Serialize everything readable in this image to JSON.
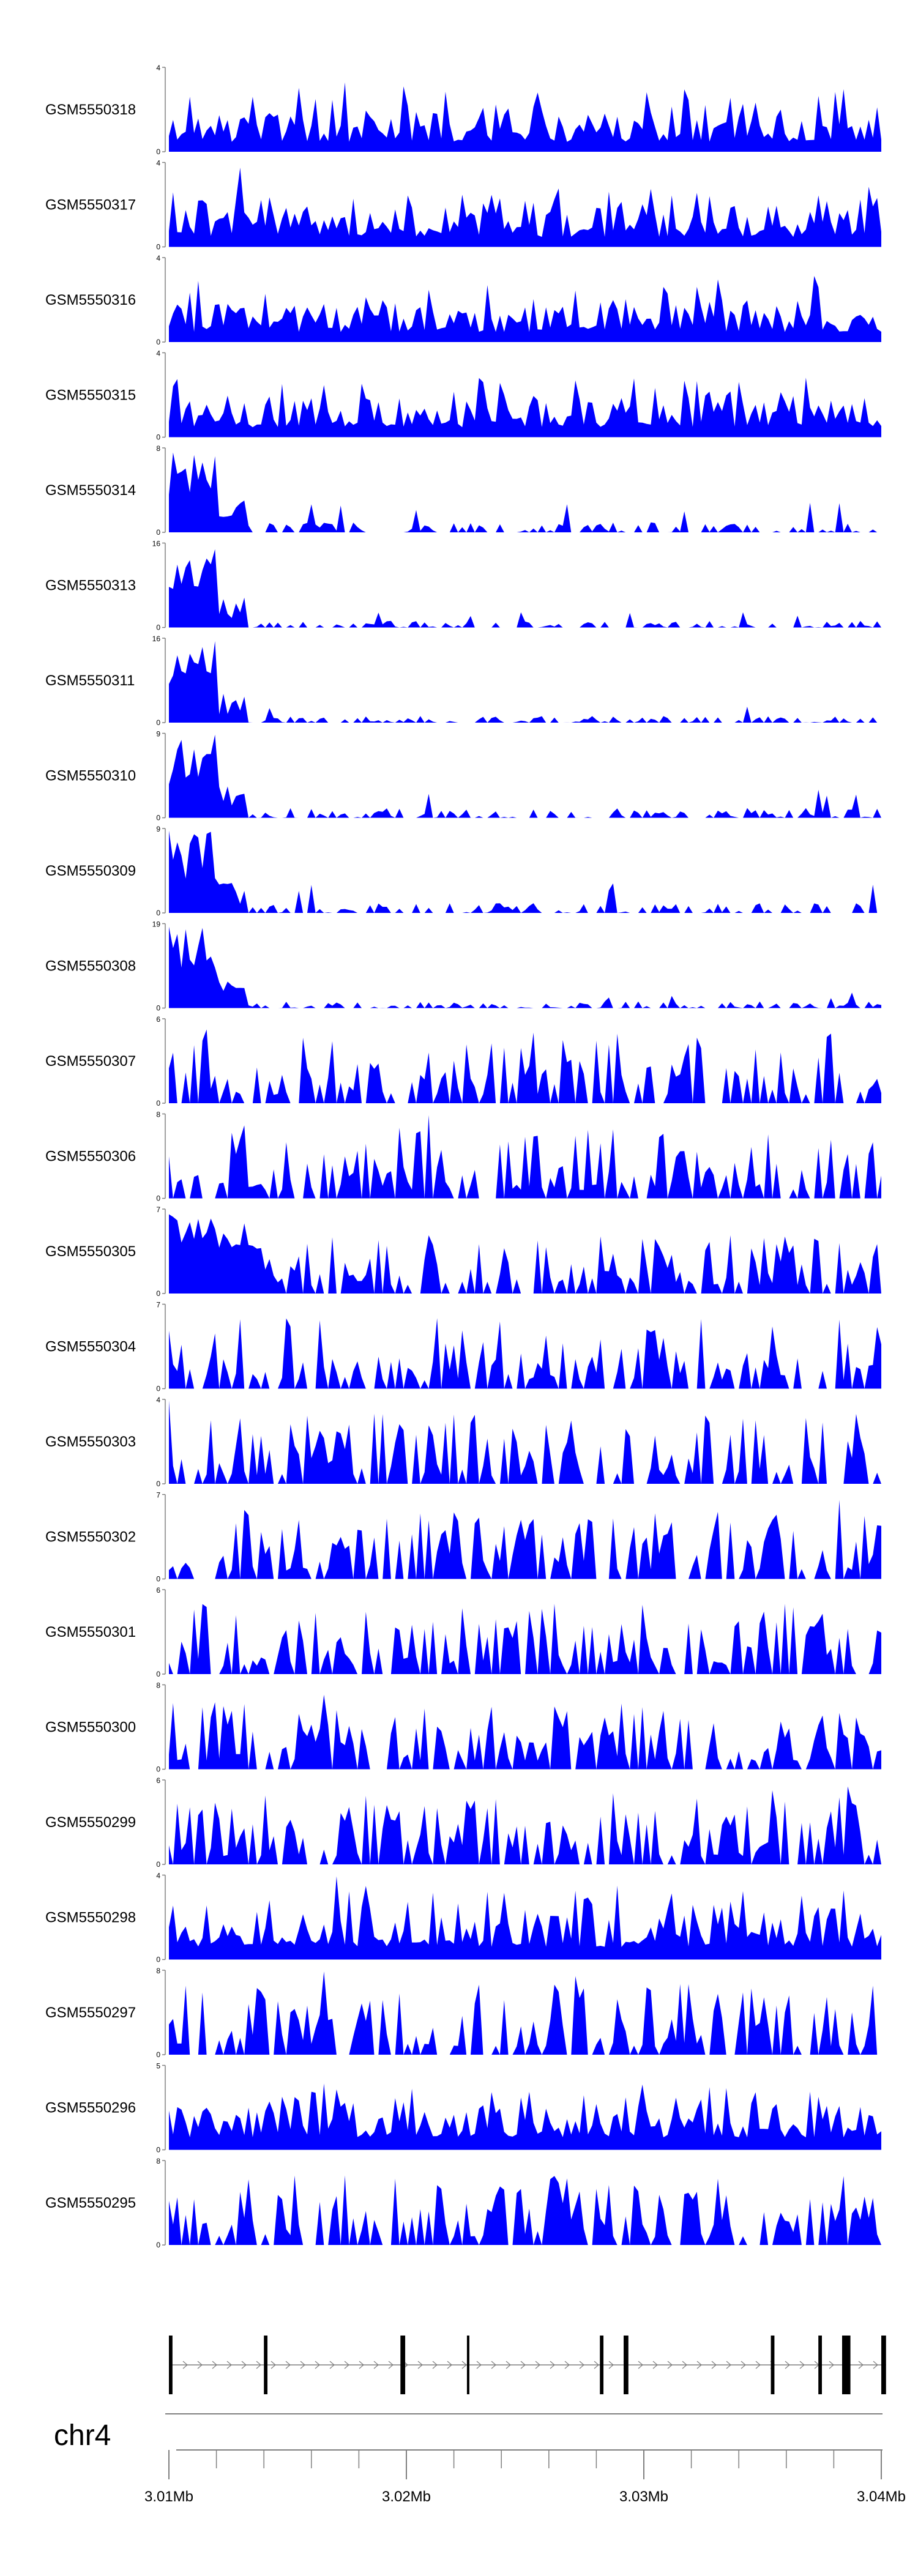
{
  "chart_data": {
    "type": "area",
    "title": "",
    "chromosome": "chr4",
    "color": "#0000ff",
    "xlim": [
      3.01,
      3.04
    ],
    "x_unit": "Mb",
    "x_ticks": [
      "3.01Mb",
      "3.02Mb",
      "3.03Mb",
      "3.04Mb"
    ],
    "x_tick_values": [
      3.01,
      3.02,
      3.03,
      3.04
    ],
    "minor_tick_step": 0.002,
    "grid": false,
    "series": [
      {
        "name": "GSM5550318",
        "ymax": 4,
        "profile": "uniform",
        "seed": 318
      },
      {
        "name": "GSM5550317",
        "ymax": 4,
        "profile": "uniform",
        "seed": 317
      },
      {
        "name": "GSM5550316",
        "ymax": 4,
        "profile": "uniform",
        "seed": 316
      },
      {
        "name": "GSM5550315",
        "ymax": 4,
        "profile": "uniform",
        "seed": 315
      },
      {
        "name": "GSM5550314",
        "ymax": 8,
        "profile": "peak-start",
        "seed": 314
      },
      {
        "name": "GSM5550313",
        "ymax": 16,
        "profile": "strong-peak-start",
        "seed": 313
      },
      {
        "name": "GSM5550311",
        "ymax": 16,
        "profile": "strong-peak-start",
        "seed": 311
      },
      {
        "name": "GSM5550310",
        "ymax": 9,
        "profile": "peak-start",
        "seed": 310
      },
      {
        "name": "GSM5550309",
        "ymax": 9,
        "profile": "peak-start",
        "seed": 309
      },
      {
        "name": "GSM5550308",
        "ymax": 19,
        "profile": "strong-peak-start",
        "seed": 308
      },
      {
        "name": "GSM5550307",
        "ymax": 6,
        "profile": "spiky",
        "seed": 307
      },
      {
        "name": "GSM5550306",
        "ymax": 8,
        "profile": "spiky",
        "seed": 306
      },
      {
        "name": "GSM5550305",
        "ymax": 7,
        "profile": "spiky-start",
        "seed": 305
      },
      {
        "name": "GSM5550304",
        "ymax": 7,
        "profile": "spiky",
        "seed": 304
      },
      {
        "name": "GSM5550303",
        "ymax": 4,
        "profile": "spiky",
        "seed": 303
      },
      {
        "name": "GSM5550302",
        "ymax": 7,
        "profile": "spiky",
        "seed": 302
      },
      {
        "name": "GSM5550301",
        "ymax": 6,
        "profile": "spiky",
        "seed": 301
      },
      {
        "name": "GSM5550300",
        "ymax": 8,
        "profile": "spiky",
        "seed": 300
      },
      {
        "name": "GSM5550299",
        "ymax": 6,
        "profile": "spiky",
        "seed": 299
      },
      {
        "name": "GSM5550298",
        "ymax": 4,
        "profile": "dense",
        "seed": 298
      },
      {
        "name": "GSM5550297",
        "ymax": 8,
        "profile": "spiky",
        "seed": 297
      },
      {
        "name": "GSM5550296",
        "ymax": 5,
        "profile": "dense",
        "seed": 296
      },
      {
        "name": "GSM5550295",
        "ymax": 8,
        "profile": "spiky",
        "seed": 295
      }
    ],
    "gene": {
      "start": 3.01,
      "end": 3.0402,
      "strand": "+",
      "exons": [
        {
          "start": 3.01,
          "end": 3.01015
        },
        {
          "start": 3.014,
          "end": 3.01415
        },
        {
          "start": 3.01975,
          "end": 3.01995
        },
        {
          "start": 3.02255,
          "end": 3.02265
        },
        {
          "start": 3.02815,
          "end": 3.0283
        },
        {
          "start": 3.02915,
          "end": 3.02935
        },
        {
          "start": 3.03535,
          "end": 3.0355
        },
        {
          "start": 3.03735,
          "end": 3.0375
        },
        {
          "start": 3.03835,
          "end": 3.0387
        },
        {
          "start": 3.04,
          "end": 3.0402
        }
      ]
    }
  }
}
